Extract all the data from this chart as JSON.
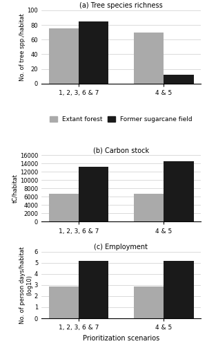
{
  "panel_a": {
    "title": "(a) Tree species richness",
    "ylabel": "No. of tree spp./habitat",
    "ylim": [
      0,
      100
    ],
    "yticks": [
      0,
      20,
      40,
      60,
      80,
      100
    ],
    "categories": [
      "1, 2, 3, 6 & 7",
      "4 & 5"
    ],
    "extant_forest": [
      75,
      70
    ],
    "sugarcane_field": [
      85,
      12
    ]
  },
  "panel_b": {
    "title": "(b) Carbon stock",
    "ylabel": "tC/habitat",
    "ylim": [
      0,
      16000
    ],
    "yticks": [
      0,
      2000,
      4000,
      6000,
      8000,
      10000,
      12000,
      14000,
      16000
    ],
    "categories": [
      "1, 2, 3, 6 & 7",
      "4 & 5"
    ],
    "extant_forest": [
      6800,
      6800
    ],
    "sugarcane_field": [
      13200,
      14500
    ]
  },
  "panel_c": {
    "title": "(c) Employment",
    "ylabel": "No. of person days/habitat\n(log10)",
    "xlabel": "Prioritization scenarios",
    "ylim": [
      0,
      6
    ],
    "yticks": [
      0,
      1,
      2,
      3,
      4,
      5,
      6
    ],
    "categories": [
      "1, 2, 3, 6 & 7",
      "4 & 5"
    ],
    "extant_forest": [
      2.85,
      2.85
    ],
    "sugarcane_field": [
      5.2,
      5.2
    ]
  },
  "legend_labels": [
    "Extant forest",
    "Former sugarcane field"
  ],
  "color_extant": "#aaaaaa",
  "color_sugarcane": "#1a1a1a",
  "bar_width": 0.35,
  "figsize": [
    3.0,
    5.0
  ],
  "dpi": 100
}
